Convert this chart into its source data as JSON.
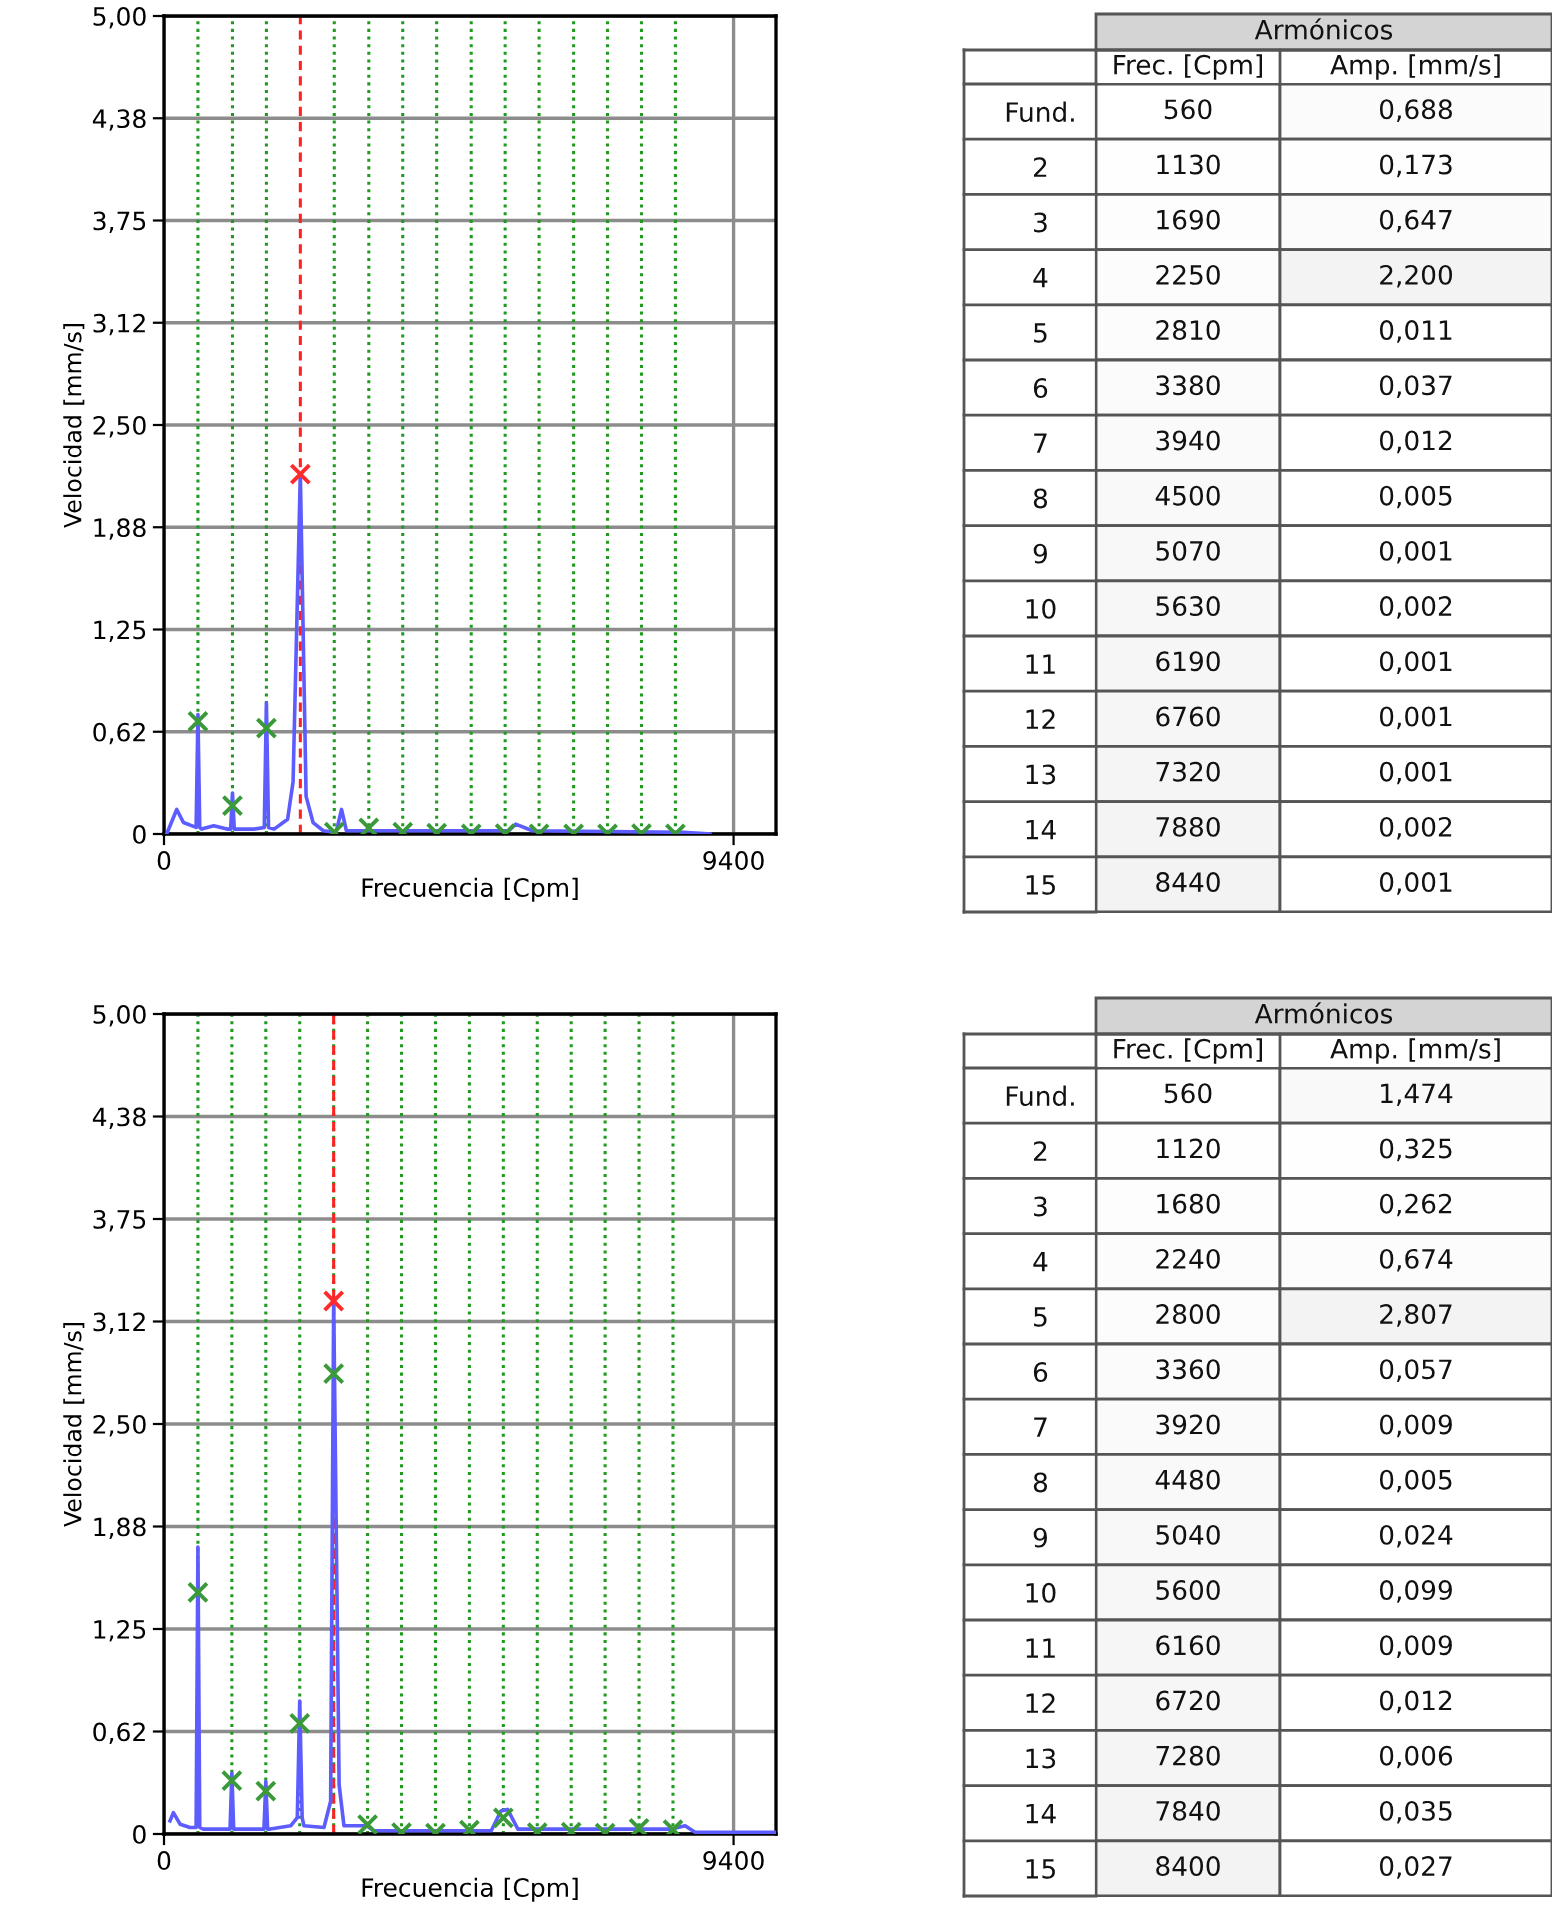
{
  "chart_data": [
    {
      "type": "line",
      "xlabel": "Frecuencia [Cpm]",
      "ylabel": "Velocidad [mm/s]",
      "xlim": [
        0,
        10100
      ],
      "xticks": [
        0,
        9400
      ],
      "ylim": [
        0,
        5
      ],
      "yticks": [
        {
          "value": 0,
          "label": "0"
        },
        {
          "value": 0.625,
          "label": "0,62"
        },
        {
          "value": 1.25,
          "label": "1,25"
        },
        {
          "value": 1.875,
          "label": "1,88"
        },
        {
          "value": 2.5,
          "label": "2,50"
        },
        {
          "value": 3.125,
          "label": "3,12"
        },
        {
          "value": 3.75,
          "label": "3,75"
        },
        {
          "value": 4.375,
          "label": "4,38"
        },
        {
          "value": 5,
          "label": "5,00"
        }
      ],
      "grid": true,
      "series": [
        {
          "type": "line",
          "color": "#5c5cff",
          "x": [
            44,
            210,
            321,
            465,
            530,
            560,
            590,
            620,
            820,
            1040,
            1100,
            1130,
            1160,
            1220,
            1485,
            1655,
            1690,
            1725,
            1817,
            2040,
            2130,
            2250,
            2345,
            2460,
            2630,
            2840,
            2930,
            3010,
            3400,
            5690,
            5803,
            6080,
            8570,
            9010
          ],
          "values": [
            0.0,
            0.15,
            0.07,
            0.05,
            0.04,
            0.73,
            0.04,
            0.03,
            0.05,
            0.03,
            0.03,
            0.25,
            0.03,
            0.03,
            0.03,
            0.04,
            0.8,
            0.04,
            0.03,
            0.09,
            0.32,
            2.2,
            0.23,
            0.07,
            0.02,
            0.01,
            0.15,
            0.02,
            0.02,
            0.02,
            0.06,
            0.02,
            0.01,
            0.0
          ]
        },
        {
          "type": "scatter",
          "marker": "cross",
          "colors": [
            "#3a9a3a",
            "#3a9a3a",
            "#3a9a3a",
            "#ff2a2a",
            "#3a9a3a",
            "#3a9a3a",
            "#3a9a3a",
            "#3a9a3a",
            "#3a9a3a",
            "#3a9a3a",
            "#3a9a3a",
            "#3a9a3a",
            "#3a9a3a",
            "#3a9a3a",
            "#3a9a3a"
          ],
          "x": [
            560,
            1130,
            1690,
            2250,
            2810,
            3380,
            3940,
            4500,
            5070,
            5630,
            6190,
            6760,
            7320,
            7880,
            8440
          ],
          "values": [
            0.688,
            0.173,
            0.647,
            2.2,
            0.011,
            0.037,
            0.012,
            0.005,
            0.001,
            0.002,
            0.001,
            0.001,
            0.001,
            0.002,
            0.001
          ]
        }
      ],
      "ref_lines": [
        {
          "axis": "x",
          "value": 560,
          "color": "#1f9a1f",
          "line_style": "dotted"
        },
        {
          "axis": "x",
          "value": 1130,
          "color": "#1f9a1f",
          "line_style": "dotted"
        },
        {
          "axis": "x",
          "value": 1690,
          "color": "#1f9a1f",
          "line_style": "dotted"
        },
        {
          "axis": "x",
          "value": 2250,
          "color": "#ff2020",
          "line_style": "dashed"
        },
        {
          "axis": "x",
          "value": 2810,
          "color": "#1f9a1f",
          "line_style": "dotted"
        },
        {
          "axis": "x",
          "value": 3380,
          "color": "#1f9a1f",
          "line_style": "dotted"
        },
        {
          "axis": "x",
          "value": 3940,
          "color": "#1f9a1f",
          "line_style": "dotted"
        },
        {
          "axis": "x",
          "value": 4500,
          "color": "#1f9a1f",
          "line_style": "dotted"
        },
        {
          "axis": "x",
          "value": 5070,
          "color": "#1f9a1f",
          "line_style": "dotted"
        },
        {
          "axis": "x",
          "value": 5630,
          "color": "#1f9a1f",
          "line_style": "dotted"
        },
        {
          "axis": "x",
          "value": 6190,
          "color": "#1f9a1f",
          "line_style": "dotted"
        },
        {
          "axis": "x",
          "value": 6760,
          "color": "#1f9a1f",
          "line_style": "dotted"
        },
        {
          "axis": "x",
          "value": 7320,
          "color": "#1f9a1f",
          "line_style": "dotted"
        },
        {
          "axis": "x",
          "value": 7880,
          "color": "#1f9a1f",
          "line_style": "dotted"
        },
        {
          "axis": "x",
          "value": 8440,
          "color": "#1f9a1f",
          "line_style": "dotted"
        }
      ]
    },
    {
      "type": "heatmap",
      "title": "Armónicos",
      "color": "#ffffff",
      "categories": [
        "Frec. [Cpm]",
        "Amp. [mm/s]"
      ],
      "y_categories": [
        "Fund.",
        "2",
        "3",
        "4",
        "5",
        "6",
        "7",
        "8",
        "9",
        "10",
        "11",
        "12",
        "13",
        "14",
        "15"
      ],
      "cells": [
        [
          560,
          0.688
        ],
        [
          1130,
          0.173
        ],
        [
          1690,
          0.647
        ],
        [
          2250,
          2.2
        ],
        [
          2810,
          0.011
        ],
        [
          3380,
          0.037
        ],
        [
          3940,
          0.012
        ],
        [
          4500,
          0.005
        ],
        [
          5070,
          0.001
        ],
        [
          5630,
          0.002
        ],
        [
          6190,
          0.001
        ],
        [
          6760,
          0.001
        ],
        [
          7320,
          0.001
        ],
        [
          7880,
          0.002
        ],
        [
          8440,
          0.001
        ]
      ],
      "cell_labels": [
        [
          "560",
          "0,688"
        ],
        [
          "1130",
          "0,173"
        ],
        [
          "1690",
          "0,647"
        ],
        [
          "2250",
          "2,200"
        ],
        [
          "2810",
          "0,011"
        ],
        [
          "3380",
          "0,037"
        ],
        [
          "3940",
          "0,012"
        ],
        [
          "4500",
          "0,005"
        ],
        [
          "5070",
          "0,001"
        ],
        [
          "5630",
          "0,002"
        ],
        [
          "6190",
          "0,001"
        ],
        [
          "6760",
          "0,001"
        ],
        [
          "7320",
          "0,001"
        ],
        [
          "7880",
          "0,002"
        ],
        [
          "8440",
          "0,001"
        ]
      ]
    },
    {
      "type": "line",
      "xlabel": "Frecuencia [Cpm]",
      "ylabel": "Velocidad [mm/s]",
      "xlim": [
        0,
        10100
      ],
      "xticks": [
        0,
        9400
      ],
      "ylim": [
        0,
        5
      ],
      "yticks": [
        {
          "value": 0,
          "label": "0"
        },
        {
          "value": 0.625,
          "label": "0,62"
        },
        {
          "value": 1.25,
          "label": "1,25"
        },
        {
          "value": 1.875,
          "label": "1,88"
        },
        {
          "value": 2.5,
          "label": "2,50"
        },
        {
          "value": 3.125,
          "label": "3,12"
        },
        {
          "value": 3.75,
          "label": "3,75"
        },
        {
          "value": 4.375,
          "label": "4,38"
        },
        {
          "value": 5,
          "label": "5,00"
        }
      ],
      "grid": true,
      "series": [
        {
          "type": "line",
          "color": "#5c5cff",
          "x": [
            99,
            155,
            265,
            430,
            530,
            560,
            590,
            650,
            980,
            1090,
            1120,
            1150,
            1215,
            1500,
            1650,
            1680,
            1710,
            1755,
            2090,
            2200,
            2240,
            2280,
            2310,
            2640,
            2750,
            2800,
            2890,
            2970,
            3350,
            3460,
            5400,
            5560,
            5670,
            5840,
            8380,
            8600,
            8765,
            10090
          ],
          "values": [
            0.08,
            0.13,
            0.06,
            0.04,
            0.04,
            1.75,
            0.04,
            0.03,
            0.03,
            0.03,
            0.37,
            0.03,
            0.03,
            0.03,
            0.03,
            0.32,
            0.03,
            0.03,
            0.05,
            0.1,
            0.81,
            0.1,
            0.05,
            0.04,
            0.2,
            3.25,
            0.3,
            0.05,
            0.05,
            0.02,
            0.02,
            0.14,
            0.15,
            0.03,
            0.03,
            0.05,
            0.01,
            0.01
          ]
        },
        {
          "type": "scatter",
          "marker": "cross",
          "color": "#3a9a3a",
          "x": [
            560,
            1120,
            1680,
            2240,
            2800,
            3360,
            3920,
            4480,
            5040,
            5600,
            6160,
            6720,
            7280,
            7840,
            8400
          ],
          "values": [
            1.474,
            0.325,
            0.262,
            0.674,
            2.807,
            0.057,
            0.009,
            0.005,
            0.024,
            0.099,
            0.009,
            0.012,
            0.006,
            0.035,
            0.027
          ]
        },
        {
          "type": "scatter",
          "marker": "cross",
          "color": "#ff2a2a",
          "x": [
            2800
          ],
          "values": [
            3.25
          ]
        }
      ],
      "ref_lines": [
        {
          "axis": "x",
          "value": 560,
          "color": "#1f9a1f",
          "line_style": "dotted"
        },
        {
          "axis": "x",
          "value": 1120,
          "color": "#1f9a1f",
          "line_style": "dotted"
        },
        {
          "axis": "x",
          "value": 1680,
          "color": "#1f9a1f",
          "line_style": "dotted"
        },
        {
          "axis": "x",
          "value": 2240,
          "color": "#1f9a1f",
          "line_style": "dotted"
        },
        {
          "axis": "x",
          "value": 2800,
          "color": "#1f9a1f",
          "line_style": "dotted"
        },
        {
          "axis": "x",
          "value": 2800,
          "color": "#ff2020",
          "line_style": "dashed"
        },
        {
          "axis": "x",
          "value": 3360,
          "color": "#1f9a1f",
          "line_style": "dotted"
        },
        {
          "axis": "x",
          "value": 3920,
          "color": "#1f9a1f",
          "line_style": "dotted"
        },
        {
          "axis": "x",
          "value": 4480,
          "color": "#1f9a1f",
          "line_style": "dotted"
        },
        {
          "axis": "x",
          "value": 5040,
          "color": "#1f9a1f",
          "line_style": "dotted"
        },
        {
          "axis": "x",
          "value": 5600,
          "color": "#1f9a1f",
          "line_style": "dotted"
        },
        {
          "axis": "x",
          "value": 6160,
          "color": "#1f9a1f",
          "line_style": "dotted"
        },
        {
          "axis": "x",
          "value": 6720,
          "color": "#1f9a1f",
          "line_style": "dotted"
        },
        {
          "axis": "x",
          "value": 7280,
          "color": "#1f9a1f",
          "line_style": "dotted"
        },
        {
          "axis": "x",
          "value": 7840,
          "color": "#1f9a1f",
          "line_style": "dotted"
        },
        {
          "axis": "x",
          "value": 8400,
          "color": "#1f9a1f",
          "line_style": "dotted"
        }
      ]
    },
    {
      "type": "heatmap",
      "title": "Armónicos",
      "color": "#ffffff",
      "categories": [
        "Frec. [Cpm]",
        "Amp. [mm/s]"
      ],
      "y_categories": [
        "Fund.",
        "2",
        "3",
        "4",
        "5",
        "6",
        "7",
        "8",
        "9",
        "10",
        "11",
        "12",
        "13",
        "14",
        "15"
      ],
      "cells": [
        [
          560,
          1.474
        ],
        [
          1120,
          0.325
        ],
        [
          1680,
          0.262
        ],
        [
          2240,
          0.674
        ],
        [
          2800,
          2.807
        ],
        [
          3360,
          0.057
        ],
        [
          3920,
          0.009
        ],
        [
          4480,
          0.005
        ],
        [
          5040,
          0.024
        ],
        [
          5600,
          0.099
        ],
        [
          6160,
          0.009
        ],
        [
          6720,
          0.012
        ],
        [
          7280,
          0.006
        ],
        [
          7840,
          0.035
        ],
        [
          8400,
          0.027
        ]
      ],
      "cell_labels": [
        [
          "560",
          "1,474"
        ],
        [
          "1120",
          "0,325"
        ],
        [
          "1680",
          "0,262"
        ],
        [
          "2240",
          "0,674"
        ],
        [
          "2800",
          "2,807"
        ],
        [
          "3360",
          "0,057"
        ],
        [
          "3920",
          "0,009"
        ],
        [
          "4480",
          "0,005"
        ],
        [
          "5040",
          "0,024"
        ],
        [
          "5600",
          "0,099"
        ],
        [
          "6160",
          "0,009"
        ],
        [
          "6720",
          "0,012"
        ],
        [
          "7280",
          "0,006"
        ],
        [
          "7840",
          "0,035"
        ],
        [
          "8400",
          "0,027"
        ]
      ]
    }
  ]
}
